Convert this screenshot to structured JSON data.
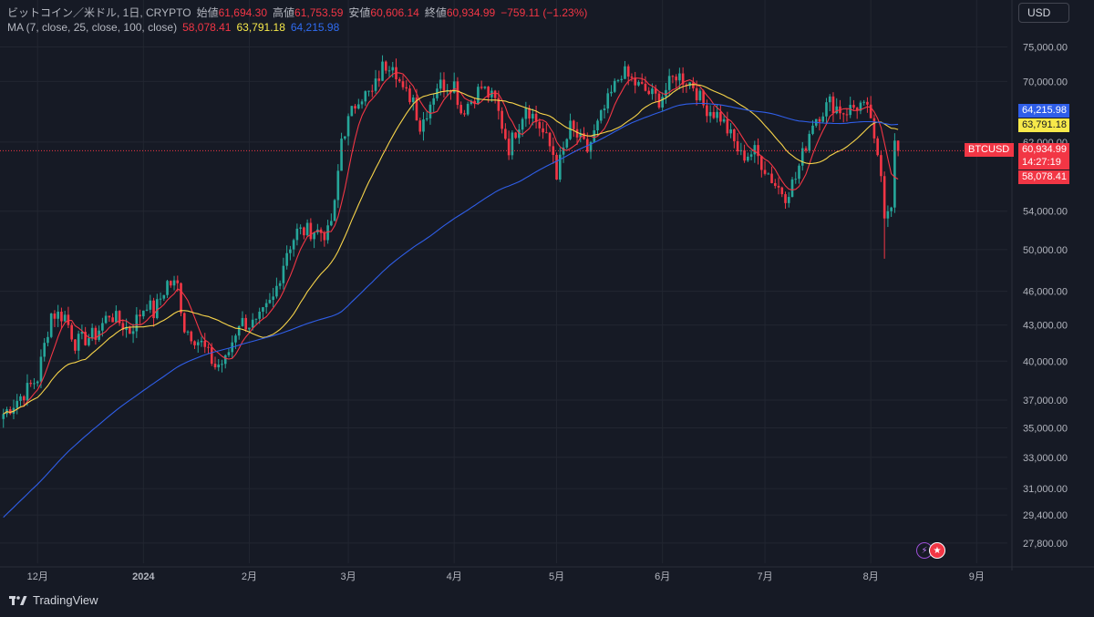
{
  "legend": {
    "symbol": "ビットコイン／米ドル, 1日, CRYPTO",
    "open_label": "始値",
    "open": "61,694.30",
    "high_label": "高値",
    "high": "61,753.59",
    "low_label": "安値",
    "low": "60,606.14",
    "close_label": "終値",
    "close": "60,934.99",
    "change": "−759.11 (−1.23%)",
    "ma_label": "MA (7, close, 25, close, 100, close)",
    "ma7": "58,078.41",
    "ma25": "63,791.18",
    "ma100": "64,215.98"
  },
  "currency_button": "USD",
  "price_badges": {
    "ma100": "64,215.98",
    "ma25": "63,791.18",
    "symbol": "BTCUSD",
    "last": "60,934.99",
    "countdown": "14:27:19",
    "ma7": "58,078.41"
  },
  "footer": {
    "brand": "TradingView"
  },
  "colors": {
    "up": "#26a69a",
    "down": "#f23645",
    "ma7": "#f23645",
    "ma25": "#f7d44a",
    "ma100": "#2f5ee8",
    "background": "#161a25"
  },
  "chart_data": {
    "type": "candlestick",
    "y_scale": "log",
    "ylim": [
      26700,
      78000
    ],
    "y_ticks": [
      {
        "value": 75000,
        "label": "75,000.00"
      },
      {
        "value": 70000,
        "label": "70,000.00"
      },
      {
        "value": 62000,
        "label": "62,000.00"
      },
      {
        "value": 54000,
        "label": "54,000.00"
      },
      {
        "value": 50000,
        "label": "50,000.00"
      },
      {
        "value": 46000,
        "label": "46,000.00"
      },
      {
        "value": 43000,
        "label": "43,000.00"
      },
      {
        "value": 40000,
        "label": "40,000.00"
      },
      {
        "value": 37000,
        "label": "37,000.00"
      },
      {
        "value": 35000,
        "label": "35,000.00"
      },
      {
        "value": 33000,
        "label": "33,000.00"
      },
      {
        "value": 31000,
        "label": "31,000.00"
      },
      {
        "value": 29400,
        "label": "29,400.00"
      },
      {
        "value": 27800,
        "label": "27,800.00"
      }
    ],
    "x_start_date": "2023-11-20",
    "x_end_date": "2024-09-10",
    "x_ticks": [
      {
        "date": "2023-12-01",
        "label": "12月"
      },
      {
        "date": "2024-01-01",
        "label": "2024"
      },
      {
        "date": "2024-02-01",
        "label": "2月"
      },
      {
        "date": "2024-03-01",
        "label": "3月"
      },
      {
        "date": "2024-04-01",
        "label": "4月"
      },
      {
        "date": "2024-05-01",
        "label": "5月"
      },
      {
        "date": "2024-06-01",
        "label": "6月"
      },
      {
        "date": "2024-07-01",
        "label": "7月"
      },
      {
        "date": "2024-08-01",
        "label": "8月"
      },
      {
        "date": "2024-09-01",
        "label": "9月"
      }
    ],
    "last_price": 60934.99,
    "close_anchors": [
      [
        "2023-11-21",
        36000
      ],
      [
        "2023-11-28",
        37800
      ],
      [
        "2023-12-01",
        38700
      ],
      [
        "2023-12-05",
        44000
      ],
      [
        "2023-12-09",
        43800
      ],
      [
        "2023-12-12",
        41500
      ],
      [
        "2023-12-18",
        42200
      ],
      [
        "2023-12-22",
        44000
      ],
      [
        "2023-12-28",
        42500
      ],
      [
        "2024-01-02",
        45000
      ],
      [
        "2024-01-04",
        44000
      ],
      [
        "2024-01-08",
        46800
      ],
      [
        "2024-01-11",
        46500
      ],
      [
        "2024-01-13",
        42800
      ],
      [
        "2024-01-18",
        41400
      ],
      [
        "2024-01-22",
        39600
      ],
      [
        "2024-01-25",
        40000
      ],
      [
        "2024-01-29",
        43300
      ],
      [
        "2024-02-03",
        43000
      ],
      [
        "2024-02-08",
        45300
      ],
      [
        "2024-02-12",
        49900
      ],
      [
        "2024-02-15",
        51800
      ],
      [
        "2024-02-20",
        52000
      ],
      [
        "2024-02-24",
        51600
      ],
      [
        "2024-02-26",
        54500
      ],
      [
        "2024-02-28",
        62500
      ],
      [
        "2024-03-04",
        68000
      ],
      [
        "2024-03-08",
        68300
      ],
      [
        "2024-03-11",
        72000
      ],
      [
        "2024-03-14",
        73100
      ],
      [
        "2024-03-17",
        68400
      ],
      [
        "2024-03-20",
        67800
      ],
      [
        "2024-03-22",
        63800
      ],
      [
        "2024-03-27",
        69500
      ],
      [
        "2024-04-01",
        69700
      ],
      [
        "2024-04-03",
        65900
      ],
      [
        "2024-04-09",
        69200
      ],
      [
        "2024-04-13",
        67200
      ],
      [
        "2024-04-17",
        61300
      ],
      [
        "2024-04-22",
        66800
      ],
      [
        "2024-04-26",
        64000
      ],
      [
        "2024-04-30",
        60600
      ],
      [
        "2024-05-01",
        58300
      ],
      [
        "2024-05-05",
        63800
      ],
      [
        "2024-05-10",
        61000
      ],
      [
        "2024-05-15",
        66200
      ],
      [
        "2024-05-20",
        71400
      ],
      [
        "2024-05-25",
        69300
      ],
      [
        "2024-05-31",
        67500
      ],
      [
        "2024-06-05",
        71000
      ],
      [
        "2024-06-10",
        69500
      ],
      [
        "2024-06-13",
        66700
      ],
      [
        "2024-06-18",
        65200
      ],
      [
        "2024-06-24",
        60300
      ],
      [
        "2024-06-28",
        60800
      ],
      [
        "2024-07-04",
        57000
      ],
      [
        "2024-07-07",
        55800
      ],
      [
        "2024-07-10",
        57700
      ],
      [
        "2024-07-15",
        64700
      ],
      [
        "2024-07-20",
        67100
      ],
      [
        "2024-07-24",
        65900
      ],
      [
        "2024-07-29",
        66800
      ],
      [
        "2024-08-01",
        65300
      ],
      [
        "2024-08-02",
        61500
      ],
      [
        "2024-08-04",
        58100
      ],
      [
        "2024-08-05",
        54000
      ],
      [
        "2024-08-07",
        55100
      ],
      [
        "2024-08-08",
        61700
      ],
      [
        "2024-08-09",
        60935
      ]
    ],
    "series": [
      {
        "name": "MA 7",
        "period": 7,
        "last": 58078.41
      },
      {
        "name": "MA 25",
        "period": 25,
        "last": 63791.18
      },
      {
        "name": "MA 100",
        "period": 100,
        "last": 64215.98
      }
    ]
  }
}
